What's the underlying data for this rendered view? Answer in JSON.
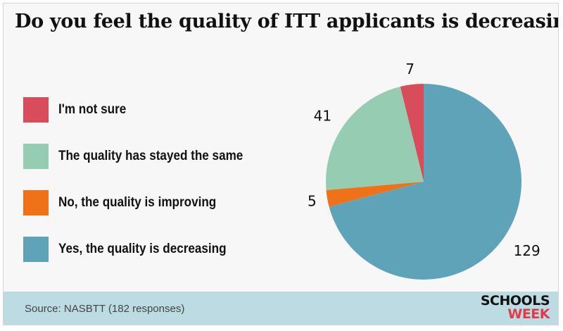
{
  "chart_data": {
    "type": "pie",
    "title": "Do you feel the quality of ITT applicants is decreasing?",
    "slices": [
      {
        "label": "I'm not sure",
        "value": 7,
        "color": "#d94c5c"
      },
      {
        "label": "The quality has stayed the same",
        "value": 41,
        "color": "#96cdb2"
      },
      {
        "label": "No, the quality is improving",
        "value": 5,
        "color": "#ef7218"
      },
      {
        "label": "Yes, the quality is decreasing",
        "value": 129,
        "color": "#5fa3b8"
      }
    ],
    "legend_position": "left"
  },
  "footer": {
    "source": "Source: NASBTT (182 responses)",
    "logo_line1": "SCHOOLS",
    "logo_line2": "WEEK"
  }
}
